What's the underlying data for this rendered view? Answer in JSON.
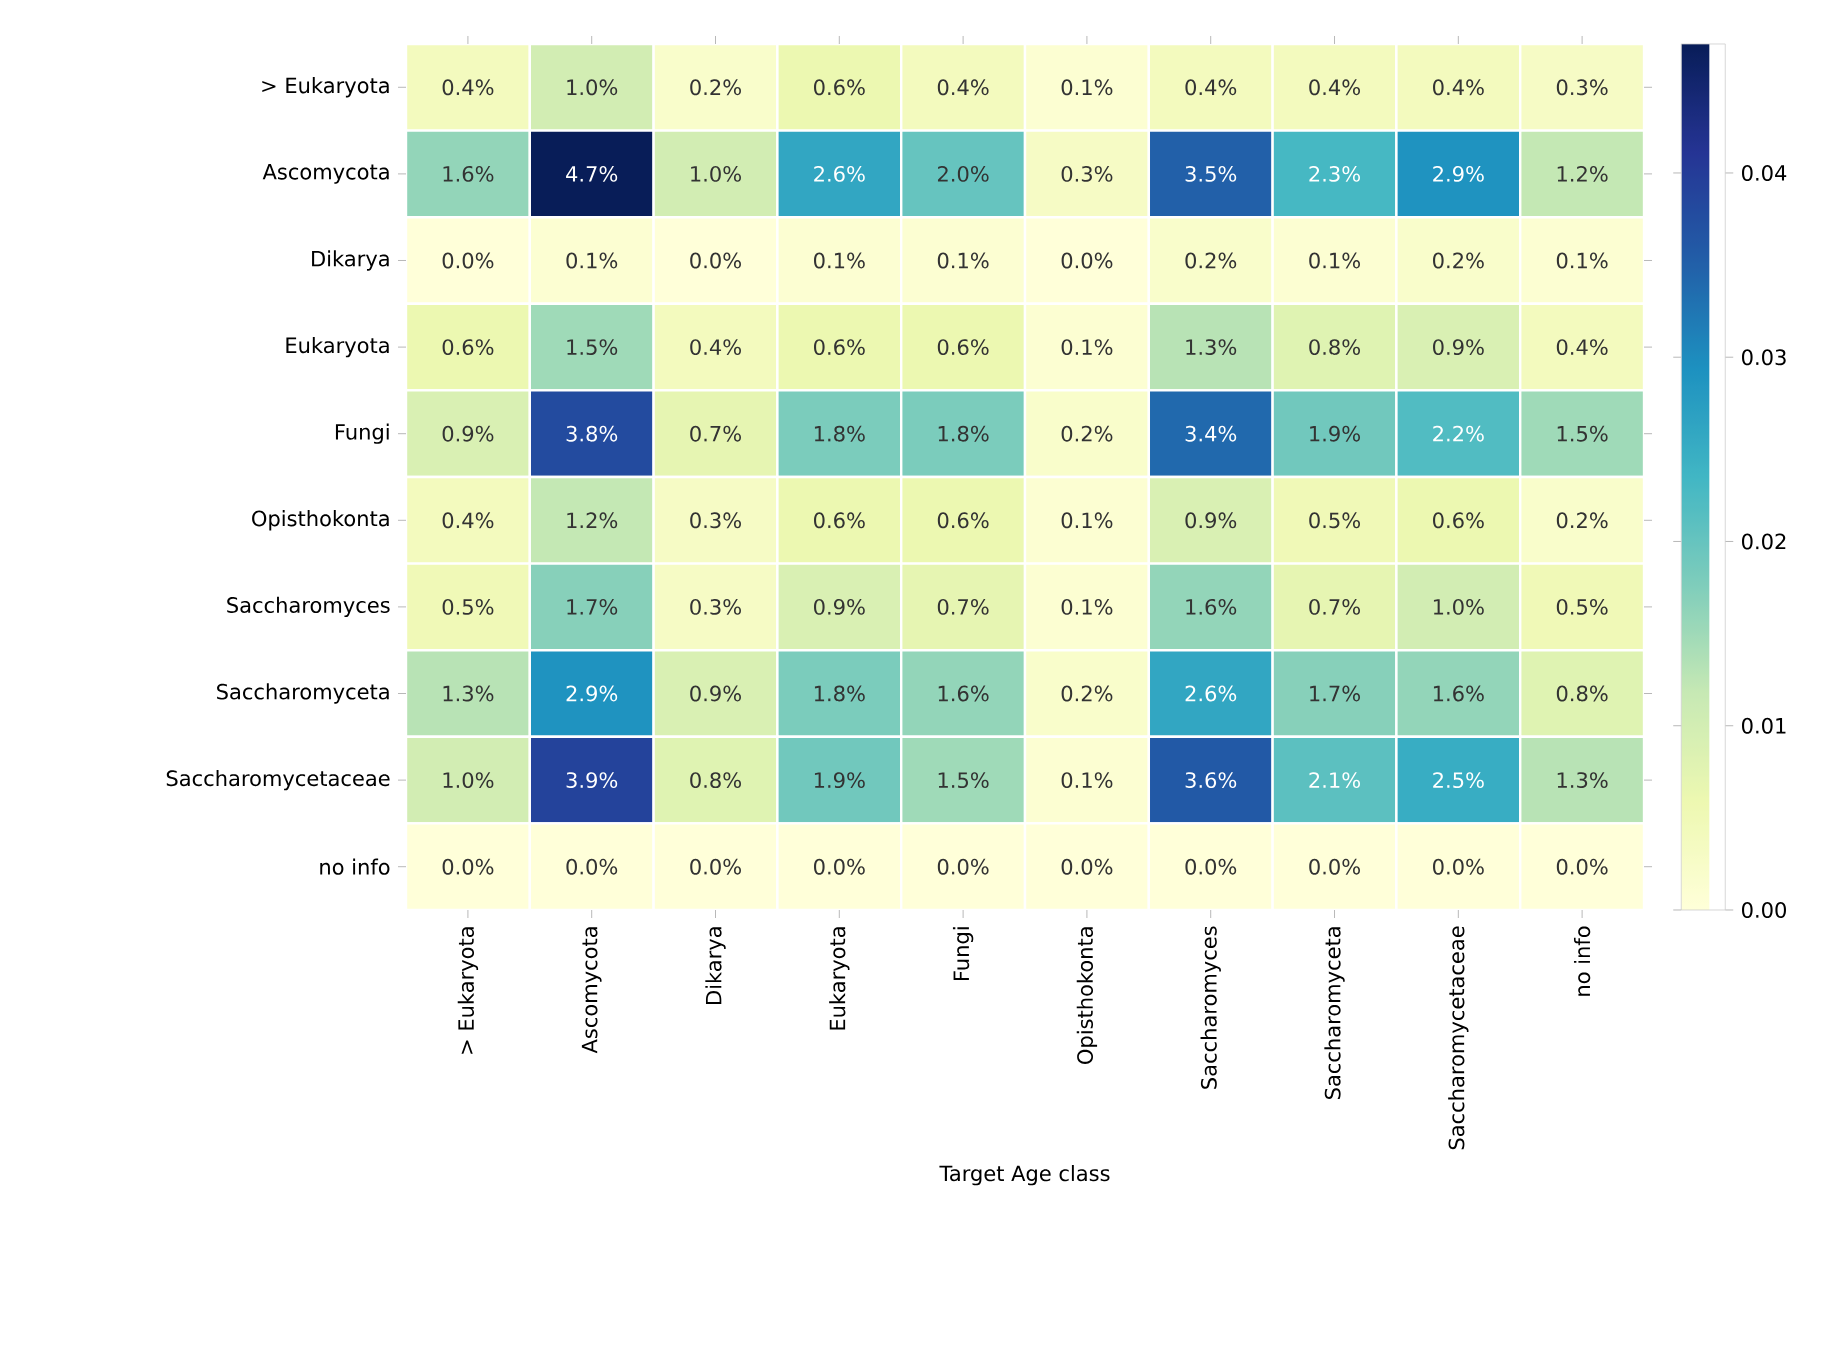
{
  "chart_data": {
    "type": "heatmap",
    "xlabel": "Target Age class",
    "categories": [
      "> Eukaryota",
      "Ascomycota",
      "Dikarya",
      "Eukaryota",
      "Fungi",
      "Opisthokonta",
      "Saccharomyces",
      "Saccharomyceta",
      "Saccharomycetaceae",
      "no info"
    ],
    "y_categories": [
      "> Eukaryota",
      "Ascomycota",
      "Dikarya",
      "Eukaryota",
      "Fungi",
      "Opisthokonta",
      "Saccharomyces",
      "Saccharomyceta",
      "Saccharomycetaceae",
      "no info"
    ],
    "cells": [
      [
        0.004,
        0.01,
        0.002,
        0.006,
        0.004,
        0.001,
        0.004,
        0.004,
        0.004,
        0.003
      ],
      [
        0.016,
        0.047,
        0.01,
        0.026,
        0.02,
        0.003,
        0.035,
        0.023,
        0.029,
        0.012
      ],
      [
        0.0,
        0.001,
        0.0,
        0.001,
        0.001,
        0.0,
        0.002,
        0.001,
        0.002,
        0.001
      ],
      [
        0.006,
        0.015,
        0.004,
        0.006,
        0.006,
        0.001,
        0.013,
        0.008,
        0.009,
        0.004
      ],
      [
        0.009,
        0.038,
        0.007,
        0.018,
        0.018,
        0.002,
        0.034,
        0.019,
        0.022,
        0.015
      ],
      [
        0.004,
        0.012,
        0.003,
        0.006,
        0.006,
        0.001,
        0.009,
        0.005,
        0.006,
        0.002
      ],
      [
        0.005,
        0.017,
        0.003,
        0.009,
        0.007,
        0.001,
        0.016,
        0.007,
        0.01,
        0.005
      ],
      [
        0.013,
        0.029,
        0.009,
        0.018,
        0.016,
        0.002,
        0.026,
        0.017,
        0.016,
        0.008
      ],
      [
        0.01,
        0.039,
        0.008,
        0.019,
        0.015,
        0.001,
        0.036,
        0.021,
        0.025,
        0.013
      ],
      [
        0.0,
        0.0,
        0.0,
        0.0,
        0.0,
        0.0,
        0.0,
        0.0,
        0.0,
        0.0
      ]
    ],
    "cell_labels": [
      [
        "0.4%",
        "1.0%",
        "0.2%",
        "0.6%",
        "0.4%",
        "0.1%",
        "0.4%",
        "0.4%",
        "0.4%",
        "0.3%"
      ],
      [
        "1.6%",
        "4.7%",
        "1.0%",
        "2.6%",
        "2.0%",
        "0.3%",
        "3.5%",
        "2.3%",
        "2.9%",
        "1.2%"
      ],
      [
        "0.0%",
        "0.1%",
        "0.0%",
        "0.1%",
        "0.1%",
        "0.0%",
        "0.2%",
        "0.1%",
        "0.2%",
        "0.1%"
      ],
      [
        "0.6%",
        "1.5%",
        "0.4%",
        "0.6%",
        "0.6%",
        "0.1%",
        "1.3%",
        "0.8%",
        "0.9%",
        "0.4%"
      ],
      [
        "0.9%",
        "3.8%",
        "0.7%",
        "1.8%",
        "1.8%",
        "0.2%",
        "3.4%",
        "1.9%",
        "2.2%",
        "1.5%"
      ],
      [
        "0.4%",
        "1.2%",
        "0.3%",
        "0.6%",
        "0.6%",
        "0.1%",
        "0.9%",
        "0.5%",
        "0.6%",
        "0.2%"
      ],
      [
        "0.5%",
        "1.7%",
        "0.3%",
        "0.9%",
        "0.7%",
        "0.1%",
        "1.6%",
        "0.7%",
        "1.0%",
        "0.5%"
      ],
      [
        "1.3%",
        "2.9%",
        "0.9%",
        "1.8%",
        "1.6%",
        "0.2%",
        "2.6%",
        "1.7%",
        "1.6%",
        "0.8%"
      ],
      [
        "1.0%",
        "3.9%",
        "0.8%",
        "1.9%",
        "1.5%",
        "0.1%",
        "3.6%",
        "2.1%",
        "2.5%",
        "1.3%"
      ],
      [
        "0.0%",
        "0.0%",
        "0.0%",
        "0.0%",
        "0.0%",
        "0.0%",
        "0.0%",
        "0.0%",
        "0.0%",
        "0.0%"
      ]
    ],
    "clim": [
      0,
      0.047
    ],
    "cticks": [
      {
        "value": 0,
        "label": "0.00"
      },
      0.01,
      0.02,
      0.03,
      0.04
    ]
  }
}
